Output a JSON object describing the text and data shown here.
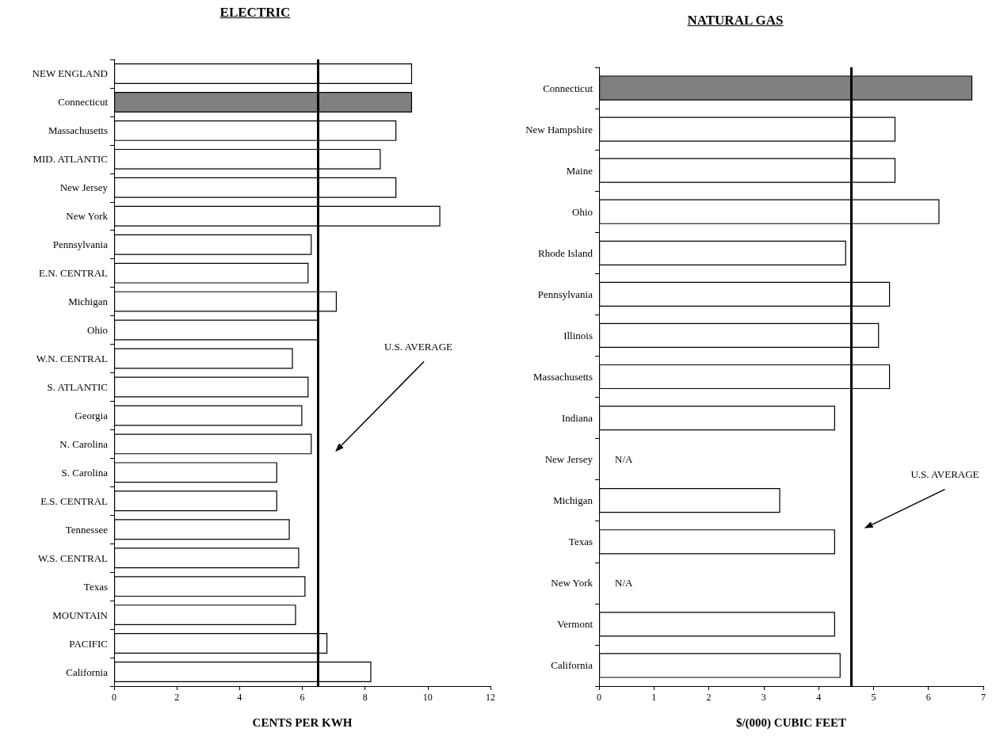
{
  "chart_data": [
    {
      "type": "bar",
      "title": "ELECTRIC",
      "xlabel": "CENTS PER KWH",
      "orientation": "horizontal",
      "categories": [
        "NEW ENGLAND",
        "Connecticut",
        "Massachusetts",
        "MID. ATLANTIC",
        "New Jersey",
        "New York",
        "Pennsylvania",
        "E.N. CENTRAL",
        "Michigan",
        "Ohio",
        "W.N. CENTRAL",
        "S. ATLANTIC",
        "Georgia",
        "N. Carolina",
        "S. Carolina",
        "E.S. CENTRAL",
        "Tennessee",
        "W.S. CENTRAL",
        "Texas",
        "MOUNTAIN",
        "PACIFIC",
        "California"
      ],
      "values": [
        9.5,
        9.5,
        9.0,
        8.5,
        9.0,
        10.4,
        6.3,
        6.2,
        7.1,
        6.5,
        5.7,
        6.2,
        6.0,
        6.3,
        5.2,
        5.2,
        5.6,
        5.9,
        6.1,
        5.8,
        6.8,
        8.2
      ],
      "colors": [
        "#ffffff",
        "#808080",
        "#ffffff",
        "#ffffff",
        "#ffffff",
        "#ffffff",
        "#ffffff",
        "#ffffff",
        "#ffffff",
        "#ffffff",
        "#ffffff",
        "#ffffff",
        "#ffffff",
        "#ffffff",
        "#ffffff",
        "#ffffff",
        "#ffffff",
        "#ffffff",
        "#ffffff",
        "#ffffff",
        "#ffffff",
        "#ffffff"
      ],
      "xlim": [
        0,
        12
      ],
      "xticks": [
        0,
        2,
        4,
        6,
        8,
        10,
        12
      ],
      "ref_lines": [
        {
          "axis": "x",
          "value": 6.5,
          "label": "U.S. AVERAGE"
        }
      ]
    },
    {
      "type": "bar",
      "title": "NATURAL GAS",
      "xlabel": "$/(000) CUBIC FEET",
      "orientation": "horizontal",
      "categories": [
        "Connecticut",
        "New Hampshire",
        "Maine",
        "Ohio",
        "Rhode Island",
        "Pennsylvania",
        "Illinois",
        "Massachusetts",
        "Indiana",
        "New Jersey",
        "Michigan",
        "Texas",
        "New York",
        "Vermont",
        "California"
      ],
      "values": [
        6.8,
        5.4,
        5.4,
        6.2,
        4.5,
        5.3,
        5.1,
        5.3,
        4.3,
        null,
        3.3,
        4.3,
        null,
        4.3,
        4.4
      ],
      "value_labels": [
        null,
        null,
        null,
        null,
        null,
        null,
        null,
        null,
        null,
        "N/A",
        null,
        null,
        "N/A",
        null,
        null
      ],
      "colors": [
        "#808080",
        "#ffffff",
        "#ffffff",
        "#ffffff",
        "#ffffff",
        "#ffffff",
        "#ffffff",
        "#ffffff",
        "#ffffff",
        "#ffffff",
        "#ffffff",
        "#ffffff",
        "#ffffff",
        "#ffffff",
        "#ffffff"
      ],
      "xlim": [
        0,
        7
      ],
      "xticks": [
        0,
        1,
        2,
        3,
        4,
        5,
        6,
        7
      ],
      "ref_lines": [
        {
          "axis": "x",
          "value": 4.6,
          "label": "U.S. AVERAGE"
        }
      ]
    }
  ]
}
